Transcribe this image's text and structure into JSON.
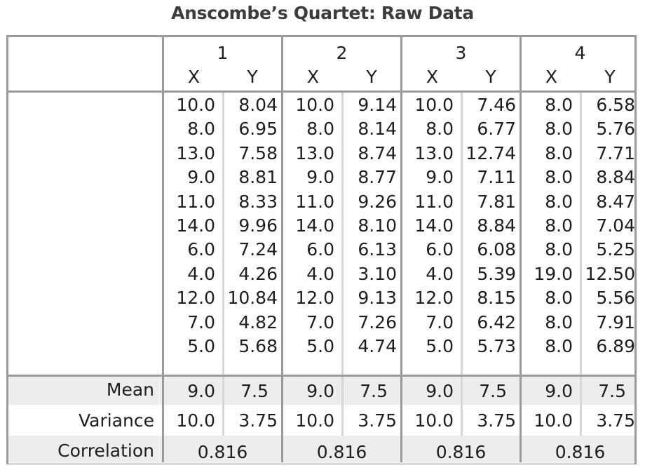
{
  "title": "Anscombe’s Quartet: Raw Data",
  "datasets": [
    {
      "label": "1",
      "x_label": "X",
      "y_label": "Y",
      "x": [
        "10.0",
        "8.0",
        "13.0",
        "9.0",
        "11.0",
        "14.0",
        "6.0",
        "4.0",
        "12.0",
        "7.0",
        "5.0"
      ],
      "y": [
        "8.04",
        "6.95",
        "7.58",
        "8.81",
        "8.33",
        "9.96",
        "7.24",
        "4.26",
        "10.84",
        "4.82",
        "5.68"
      ],
      "mean_x": "9.0",
      "mean_y": "7.5",
      "var_x": "10.0",
      "var_y": "3.75",
      "correlation": "0.816"
    },
    {
      "label": "2",
      "x_label": "X",
      "y_label": "Y",
      "x": [
        "10.0",
        "8.0",
        "13.0",
        "9.0",
        "11.0",
        "14.0",
        "6.0",
        "4.0",
        "12.0",
        "7.0",
        "5.0"
      ],
      "y": [
        "9.14",
        "8.14",
        "8.74",
        "8.77",
        "9.26",
        "8.10",
        "6.13",
        "3.10",
        "9.13",
        "7.26",
        "4.74"
      ],
      "mean_x": "9.0",
      "mean_y": "7.5",
      "var_x": "10.0",
      "var_y": "3.75",
      "correlation": "0.816"
    },
    {
      "label": "3",
      "x_label": "X",
      "y_label": "Y",
      "x": [
        "10.0",
        "8.0",
        "13.0",
        "9.0",
        "11.0",
        "14.0",
        "6.0",
        "4.0",
        "12.0",
        "7.0",
        "5.0"
      ],
      "y": [
        "7.46",
        "6.77",
        "12.74",
        "7.11",
        "7.81",
        "8.84",
        "6.08",
        "5.39",
        "8.15",
        "6.42",
        "5.73"
      ],
      "mean_x": "9.0",
      "mean_y": "7.5",
      "var_x": "10.0",
      "var_y": "3.75",
      "correlation": "0.816"
    },
    {
      "label": "4",
      "x_label": "X",
      "y_label": "Y",
      "x": [
        "8.0",
        "8.0",
        "8.0",
        "8.0",
        "8.0",
        "8.0",
        "8.0",
        "19.0",
        "8.0",
        "8.0",
        "8.0"
      ],
      "y": [
        "6.58",
        "5.76",
        "7.71",
        "8.84",
        "8.47",
        "7.04",
        "5.25",
        "12.50",
        "5.56",
        "7.91",
        "6.89"
      ],
      "mean_x": "9.0",
      "mean_y": "7.5",
      "var_x": "10.0",
      "var_y": "3.75",
      "correlation": "0.816"
    }
  ],
  "summary_labels": {
    "mean": "Mean",
    "variance": "Variance",
    "correlation": "Correlation"
  }
}
